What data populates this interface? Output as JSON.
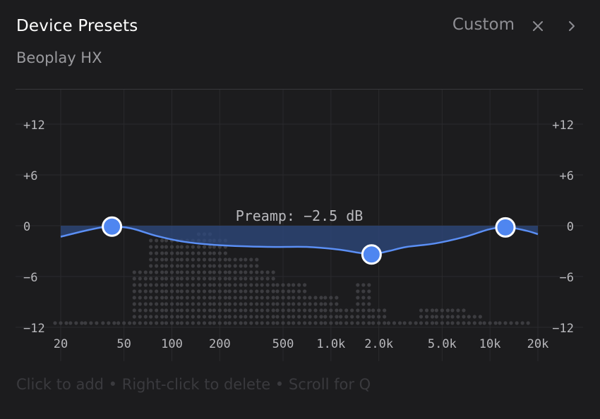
{
  "header": {
    "title": "Device Presets",
    "subtitle": "Beoplay HX",
    "preset": "Custom",
    "close_icon": "close-icon",
    "next_icon": "chevron-right-icon"
  },
  "colors": {
    "background": "#1c1c1e",
    "accent": "#4f86f0",
    "curve": "#5b8ff5",
    "fill": "#2d4a80",
    "grid": "#2a2a2d",
    "label": "#b8b8bc",
    "dots": "#3c3c40"
  },
  "chart_data": {
    "type": "line",
    "title": "",
    "xscale": "log",
    "xlim": [
      20,
      20000
    ],
    "ylim": [
      -12,
      12
    ],
    "x_ticks": [
      {
        "value": 20,
        "label": "20"
      },
      {
        "value": 50,
        "label": "50"
      },
      {
        "value": 100,
        "label": "100"
      },
      {
        "value": 200,
        "label": "200"
      },
      {
        "value": 500,
        "label": "500"
      },
      {
        "value": 1000,
        "label": "1.0k"
      },
      {
        "value": 2000,
        "label": "2.0k"
      },
      {
        "value": 5000,
        "label": "5.0k"
      },
      {
        "value": 10000,
        "label": "10k"
      },
      {
        "value": 20000,
        "label": "20k"
      }
    ],
    "y_ticks": [
      {
        "value": 12,
        "label": "+12"
      },
      {
        "value": 6,
        "label": "+6"
      },
      {
        "value": 0,
        "label": "0"
      },
      {
        "value": -6,
        "label": "−6"
      },
      {
        "value": -12,
        "label": "−12"
      }
    ],
    "curve": [
      {
        "x": 20,
        "y": -1.3
      },
      {
        "x": 30,
        "y": -0.5
      },
      {
        "x": 40,
        "y": -0.1
      },
      {
        "x": 55,
        "y": -0.3
      },
      {
        "x": 80,
        "y": -1.2
      },
      {
        "x": 120,
        "y": -1.9
      },
      {
        "x": 200,
        "y": -2.3
      },
      {
        "x": 400,
        "y": -2.5
      },
      {
        "x": 700,
        "y": -2.5
      },
      {
        "x": 1100,
        "y": -2.8
      },
      {
        "x": 1500,
        "y": -3.2
      },
      {
        "x": 1800,
        "y": -3.4
      },
      {
        "x": 2300,
        "y": -3.0
      },
      {
        "x": 3000,
        "y": -2.5
      },
      {
        "x": 4500,
        "y": -2.1
      },
      {
        "x": 7000,
        "y": -1.3
      },
      {
        "x": 10000,
        "y": -0.4
      },
      {
        "x": 13000,
        "y": -0.2
      },
      {
        "x": 17000,
        "y": -0.6
      },
      {
        "x": 20000,
        "y": -1.0
      }
    ],
    "bands": [
      {
        "freq": 42,
        "gain": -0.1
      },
      {
        "freq": 1800,
        "gain": -3.4
      },
      {
        "freq": 12500,
        "gain": -0.2
      }
    ],
    "preamp_label": "Preamp: −2.5 dB",
    "preamp_db": -2.5,
    "spectrum": [
      {
        "x": 20,
        "y": -11.5
      },
      {
        "x": 25,
        "y": -11.5
      },
      {
        "x": 31,
        "y": -11.5
      },
      {
        "x": 40,
        "y": -11.5
      },
      {
        "x": 50,
        "y": -11.0
      },
      {
        "x": 63,
        "y": -5.0
      },
      {
        "x": 80,
        "y": -1.5
      },
      {
        "x": 100,
        "y": -1.5
      },
      {
        "x": 125,
        "y": -1.5
      },
      {
        "x": 160,
        "y": -0.5
      },
      {
        "x": 200,
        "y": -1.5
      },
      {
        "x": 250,
        "y": -3.5
      },
      {
        "x": 315,
        "y": -3.5
      },
      {
        "x": 400,
        "y": -5.0
      },
      {
        "x": 500,
        "y": -6.5
      },
      {
        "x": 630,
        "y": -7.0
      },
      {
        "x": 800,
        "y": -8.0
      },
      {
        "x": 1000,
        "y": -8.5
      },
      {
        "x": 1250,
        "y": -10.0
      },
      {
        "x": 1600,
        "y": -6.5
      },
      {
        "x": 2000,
        "y": -10.0
      },
      {
        "x": 2500,
        "y": -11.0
      },
      {
        "x": 3150,
        "y": -11.0
      },
      {
        "x": 4000,
        "y": -9.5
      },
      {
        "x": 5000,
        "y": -10.0
      },
      {
        "x": 6300,
        "y": -10.0
      },
      {
        "x": 8000,
        "y": -10.5
      },
      {
        "x": 10000,
        "y": -11.0
      },
      {
        "x": 12500,
        "y": -11.5
      },
      {
        "x": 16000,
        "y": -11.5
      }
    ]
  },
  "footer": {
    "hint": "Click to add • Right-click to delete • Scroll for Q"
  }
}
